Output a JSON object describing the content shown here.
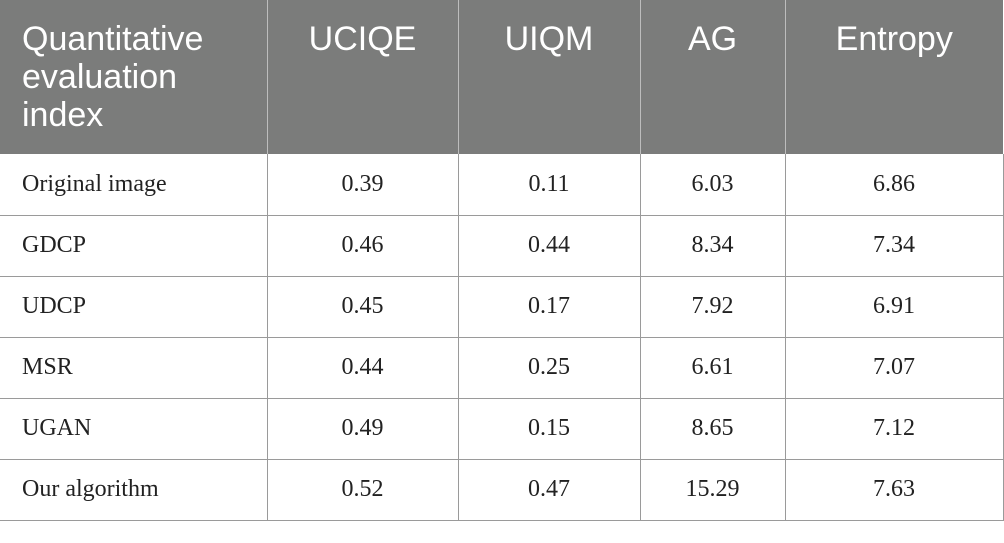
{
  "table": {
    "headers": [
      "Quantitative evaluation index",
      "UCIQE",
      "UIQM",
      "AG",
      "Entropy"
    ],
    "rows": [
      {
        "method": "Original image",
        "values": [
          "0.39",
          "0.11",
          "6.03",
          "6.86"
        ]
      },
      {
        "method": "GDCP",
        "values": [
          "0.46",
          "0.44",
          "8.34",
          "7.34"
        ]
      },
      {
        "method": "UDCP",
        "values": [
          "0.45",
          "0.17",
          "7.92",
          "6.91"
        ]
      },
      {
        "method": "MSR",
        "values": [
          "0.44",
          "0.25",
          "6.61",
          "7.07"
        ]
      },
      {
        "method": "UGAN",
        "values": [
          "0.49",
          "0.15",
          "8.65",
          "7.12"
        ]
      },
      {
        "method": "Our algorithm",
        "values": [
          "0.52",
          "0.47",
          "15.29",
          "7.63"
        ]
      }
    ]
  },
  "colors": {
    "header_background": "#7b7c7b",
    "header_text": "#ffffff",
    "grid_line": "#9a9a9a"
  }
}
